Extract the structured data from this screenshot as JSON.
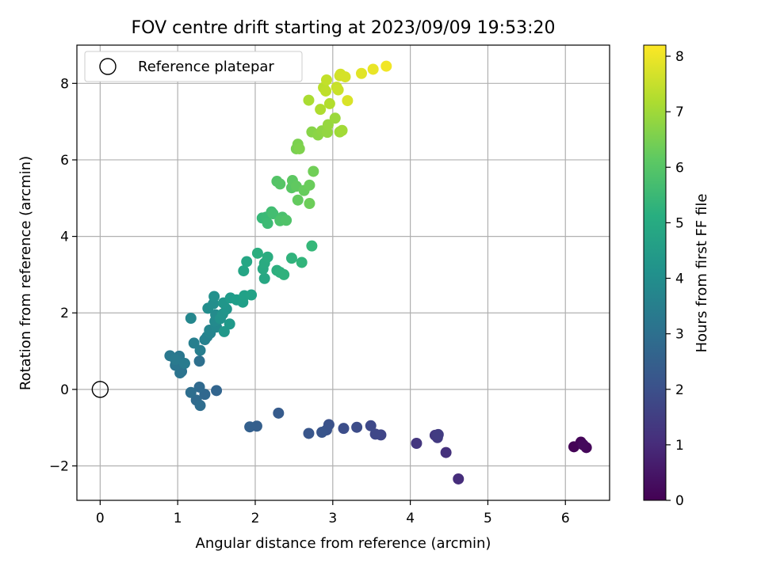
{
  "chart_data": {
    "type": "scatter",
    "title": "FOV centre drift starting at 2023/09/09 19:53:20",
    "xlabel": "Angular distance from reference (arcmin)",
    "ylabel": "Rotation from reference (arcmin)",
    "xlim": [
      -0.3,
      6.57
    ],
    "ylim": [
      -2.9,
      9.0
    ],
    "xticks": [
      "0",
      "1",
      "2",
      "3",
      "4",
      "5",
      "6"
    ],
    "yticks": [
      "−2",
      "0",
      "2",
      "4",
      "6",
      "8"
    ],
    "grid": true,
    "legend": {
      "position": "top-left",
      "entries": [
        "Reference platepar"
      ]
    },
    "reference_point": {
      "x": 0,
      "y": 0
    },
    "colorbar": {
      "label": "Hours from first FF file",
      "range": [
        0,
        8.2
      ],
      "ticks": [
        "0",
        "1",
        "2",
        "3",
        "4",
        "5",
        "6",
        "7",
        "8"
      ],
      "colormap": "viridis"
    },
    "points": [
      {
        "x": 6.11,
        "y": -1.5,
        "h": 0.05
      },
      {
        "x": 6.2,
        "y": -1.38,
        "h": 0.1
      },
      {
        "x": 6.27,
        "y": -1.52,
        "h": 0.15
      },
      {
        "x": 6.23,
        "y": -1.45,
        "h": 0.2
      },
      {
        "x": 4.62,
        "y": -2.34,
        "h": 1.05
      },
      {
        "x": 4.46,
        "y": -1.65,
        "h": 1.15
      },
      {
        "x": 4.08,
        "y": -1.41,
        "h": 1.3
      },
      {
        "x": 4.32,
        "y": -1.2,
        "h": 1.35
      },
      {
        "x": 4.35,
        "y": -1.26,
        "h": 1.4
      },
      {
        "x": 4.36,
        "y": -1.18,
        "h": 1.45
      },
      {
        "x": 3.62,
        "y": -1.19,
        "h": 1.7
      },
      {
        "x": 3.55,
        "y": -1.17,
        "h": 1.75
      },
      {
        "x": 3.49,
        "y": -0.95,
        "h": 1.8
      },
      {
        "x": 3.31,
        "y": -0.99,
        "h": 1.9
      },
      {
        "x": 3.14,
        "y": -1.02,
        "h": 1.95
      },
      {
        "x": 2.95,
        "y": -0.92,
        "h": 2.05
      },
      {
        "x": 2.92,
        "y": -1.06,
        "h": 2.1
      },
      {
        "x": 2.86,
        "y": -1.12,
        "h": 2.15
      },
      {
        "x": 2.69,
        "y": -1.15,
        "h": 2.2
      },
      {
        "x": 2.3,
        "y": -0.62,
        "h": 2.35
      },
      {
        "x": 2.02,
        "y": -0.96,
        "h": 2.45
      },
      {
        "x": 1.93,
        "y": -0.98,
        "h": 2.5
      },
      {
        "x": 1.5,
        "y": -0.03,
        "h": 2.65
      },
      {
        "x": 1.35,
        "y": -0.13,
        "h": 2.75
      },
      {
        "x": 1.28,
        "y": 0.06,
        "h": 2.8
      },
      {
        "x": 1.24,
        "y": -0.28,
        "h": 2.85
      },
      {
        "x": 1.29,
        "y": -0.42,
        "h": 2.9
      },
      {
        "x": 1.17,
        "y": -0.08,
        "h": 2.95
      },
      {
        "x": 1.28,
        "y": 0.74,
        "h": 3.0
      },
      {
        "x": 1.05,
        "y": 0.47,
        "h": 3.1
      },
      {
        "x": 1.03,
        "y": 0.43,
        "h": 3.15
      },
      {
        "x": 0.97,
        "y": 0.63,
        "h": 3.2
      },
      {
        "x": 1.02,
        "y": 0.87,
        "h": 3.25
      },
      {
        "x": 0.9,
        "y": 0.88,
        "h": 3.3
      },
      {
        "x": 0.97,
        "y": 0.78,
        "h": 3.35
      },
      {
        "x": 1.09,
        "y": 0.68,
        "h": 3.4
      },
      {
        "x": 1.29,
        "y": 1.02,
        "h": 3.5
      },
      {
        "x": 1.21,
        "y": 1.21,
        "h": 3.55
      },
      {
        "x": 1.35,
        "y": 1.3,
        "h": 3.6
      },
      {
        "x": 1.38,
        "y": 1.38,
        "h": 3.65
      },
      {
        "x": 1.42,
        "y": 1.47,
        "h": 3.7
      },
      {
        "x": 1.41,
        "y": 1.55,
        "h": 3.75
      },
      {
        "x": 1.17,
        "y": 1.86,
        "h": 3.8
      },
      {
        "x": 1.5,
        "y": 1.63,
        "h": 3.85
      },
      {
        "x": 1.48,
        "y": 1.78,
        "h": 3.9
      },
      {
        "x": 1.49,
        "y": 1.95,
        "h": 3.95
      },
      {
        "x": 1.39,
        "y": 2.12,
        "h": 4.0
      },
      {
        "x": 1.46,
        "y": 2.24,
        "h": 4.05
      },
      {
        "x": 1.47,
        "y": 2.43,
        "h": 4.1
      },
      {
        "x": 1.55,
        "y": 1.85,
        "h": 4.15
      },
      {
        "x": 1.58,
        "y": 1.97,
        "h": 4.2
      },
      {
        "x": 1.63,
        "y": 2.1,
        "h": 4.25
      },
      {
        "x": 1.59,
        "y": 2.26,
        "h": 4.3
      },
      {
        "x": 1.6,
        "y": 1.51,
        "h": 4.35
      },
      {
        "x": 1.67,
        "y": 1.71,
        "h": 4.4
      },
      {
        "x": 1.68,
        "y": 2.39,
        "h": 4.45
      },
      {
        "x": 1.76,
        "y": 2.34,
        "h": 4.55
      },
      {
        "x": 1.84,
        "y": 2.28,
        "h": 4.6
      },
      {
        "x": 1.86,
        "y": 2.45,
        "h": 4.65
      },
      {
        "x": 1.95,
        "y": 2.47,
        "h": 4.7
      },
      {
        "x": 1.85,
        "y": 3.1,
        "h": 4.8
      },
      {
        "x": 1.89,
        "y": 3.34,
        "h": 4.85
      },
      {
        "x": 2.12,
        "y": 2.9,
        "h": 4.9
      },
      {
        "x": 2.1,
        "y": 3.15,
        "h": 4.95
      },
      {
        "x": 2.12,
        "y": 3.3,
        "h": 5.0
      },
      {
        "x": 2.16,
        "y": 3.46,
        "h": 5.05
      },
      {
        "x": 2.03,
        "y": 3.56,
        "h": 5.1
      },
      {
        "x": 2.28,
        "y": 3.11,
        "h": 5.15
      },
      {
        "x": 2.32,
        "y": 3.06,
        "h": 5.2
      },
      {
        "x": 2.37,
        "y": 3.0,
        "h": 5.25
      },
      {
        "x": 2.47,
        "y": 3.43,
        "h": 5.3
      },
      {
        "x": 2.6,
        "y": 3.32,
        "h": 5.35
      },
      {
        "x": 2.73,
        "y": 3.75,
        "h": 5.45
      },
      {
        "x": 2.09,
        "y": 4.48,
        "h": 5.5
      },
      {
        "x": 2.14,
        "y": 4.5,
        "h": 5.55
      },
      {
        "x": 2.16,
        "y": 4.34,
        "h": 5.6
      },
      {
        "x": 2.21,
        "y": 4.64,
        "h": 5.65
      },
      {
        "x": 2.23,
        "y": 4.59,
        "h": 5.7
      },
      {
        "x": 2.32,
        "y": 4.43,
        "h": 5.75
      },
      {
        "x": 2.35,
        "y": 4.5,
        "h": 5.8
      },
      {
        "x": 2.32,
        "y": 4.41,
        "h": 5.85
      },
      {
        "x": 2.4,
        "y": 4.42,
        "h": 5.9
      },
      {
        "x": 2.28,
        "y": 5.44,
        "h": 5.95
      },
      {
        "x": 2.32,
        "y": 5.37,
        "h": 6.0
      },
      {
        "x": 2.47,
        "y": 5.27,
        "h": 6.05
      },
      {
        "x": 2.48,
        "y": 5.46,
        "h": 6.1
      },
      {
        "x": 2.53,
        "y": 5.31,
        "h": 6.15
      },
      {
        "x": 2.55,
        "y": 4.95,
        "h": 6.2
      },
      {
        "x": 2.63,
        "y": 5.2,
        "h": 6.25
      },
      {
        "x": 2.7,
        "y": 5.34,
        "h": 6.3
      },
      {
        "x": 2.7,
        "y": 4.86,
        "h": 6.35
      },
      {
        "x": 2.75,
        "y": 5.7,
        "h": 6.4
      },
      {
        "x": 2.53,
        "y": 6.29,
        "h": 6.5
      },
      {
        "x": 2.55,
        "y": 6.41,
        "h": 6.55
      },
      {
        "x": 2.57,
        "y": 6.29,
        "h": 6.6
      },
      {
        "x": 2.73,
        "y": 6.73,
        "h": 6.7
      },
      {
        "x": 2.81,
        "y": 6.65,
        "h": 6.75
      },
      {
        "x": 2.86,
        "y": 6.76,
        "h": 6.8
      },
      {
        "x": 2.93,
        "y": 6.72,
        "h": 6.85
      },
      {
        "x": 2.94,
        "y": 6.92,
        "h": 6.9
      },
      {
        "x": 3.03,
        "y": 7.09,
        "h": 6.95
      },
      {
        "x": 3.09,
        "y": 6.73,
        "h": 7.0
      },
      {
        "x": 3.12,
        "y": 6.77,
        "h": 7.05
      },
      {
        "x": 2.69,
        "y": 7.56,
        "h": 7.15
      },
      {
        "x": 2.84,
        "y": 7.32,
        "h": 7.2
      },
      {
        "x": 2.96,
        "y": 7.47,
        "h": 7.25
      },
      {
        "x": 2.88,
        "y": 7.89,
        "h": 7.35
      },
      {
        "x": 2.91,
        "y": 7.8,
        "h": 7.4
      },
      {
        "x": 2.92,
        "y": 8.09,
        "h": 7.45
      },
      {
        "x": 3.05,
        "y": 7.9,
        "h": 7.5
      },
      {
        "x": 3.07,
        "y": 7.83,
        "h": 7.55
      },
      {
        "x": 3.09,
        "y": 8.2,
        "h": 7.6
      },
      {
        "x": 3.1,
        "y": 8.24,
        "h": 7.65
      },
      {
        "x": 3.16,
        "y": 8.17,
        "h": 7.7
      },
      {
        "x": 3.19,
        "y": 7.55,
        "h": 7.75
      },
      {
        "x": 3.37,
        "y": 8.26,
        "h": 7.85
      },
      {
        "x": 3.52,
        "y": 8.37,
        "h": 7.95
      },
      {
        "x": 3.69,
        "y": 8.45,
        "h": 8.05
      }
    ]
  }
}
